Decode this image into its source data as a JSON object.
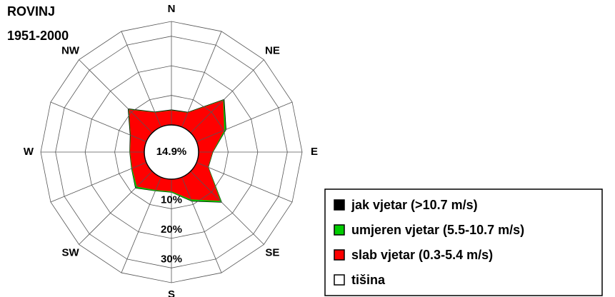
{
  "chart_data": {
    "type": "windrose",
    "title": "ROVINJ",
    "subtitle": "1951-2000",
    "categories": [
      "N",
      null,
      "NE",
      null,
      "E",
      null,
      "SE",
      null,
      "S",
      null,
      "SW",
      null,
      "W",
      null,
      "NW",
      null
    ],
    "series": [
      {
        "name": "slab vjetar (0.3-5.4 m/s)",
        "color": "#ff0000",
        "values": [
          4.8,
          5.1,
          15.4,
          10.0,
          4.6,
          4.1,
          14.0,
          8.0,
          4.0,
          4.6,
          7.2,
          5.1,
          4.7,
          5.6,
          11.0,
          5.2
        ]
      },
      {
        "name": "umjeren vjetar (5.5-10.7 m/s)",
        "color": "#00cc00",
        "values": [
          0.1,
          0.1,
          0.3,
          0.6,
          0.1,
          0.1,
          0.6,
          0.6,
          0.3,
          0.3,
          0.6,
          0.2,
          0.1,
          0.1,
          0.2,
          0.1
        ]
      },
      {
        "name": "jak  vjetar (>10.7 m/s)",
        "color": "#000000",
        "values": [
          0.2,
          0.2,
          0.3,
          0.2,
          0.1,
          0.1,
          0.2,
          0.2,
          0.1,
          0.1,
          0.2,
          0.1,
          0.1,
          0.2,
          0.3,
          0.2
        ]
      }
    ],
    "calm": {
      "name": "tišina",
      "color": "#ffffff",
      "value": 14.9,
      "value_label": "14.9%"
    },
    "rlim": [
      0,
      35
    ],
    "rticks": [
      {
        "value": 10,
        "label": "10%"
      },
      {
        "value": 20,
        "label": "20%"
      },
      {
        "value": 30,
        "label": "30%"
      }
    ],
    "grid": true
  }
}
